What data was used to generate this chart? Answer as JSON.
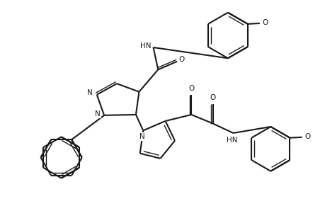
{
  "bg": "#ffffff",
  "lc": "#1a1a1a",
  "lw": 1.5,
  "lw2": 1.0,
  "figsize": [
    4.6,
    3.15
  ],
  "dpi": 100,
  "xlim": [
    -0.5,
    9.5
  ],
  "ylim": [
    -0.3,
    6.7
  ]
}
